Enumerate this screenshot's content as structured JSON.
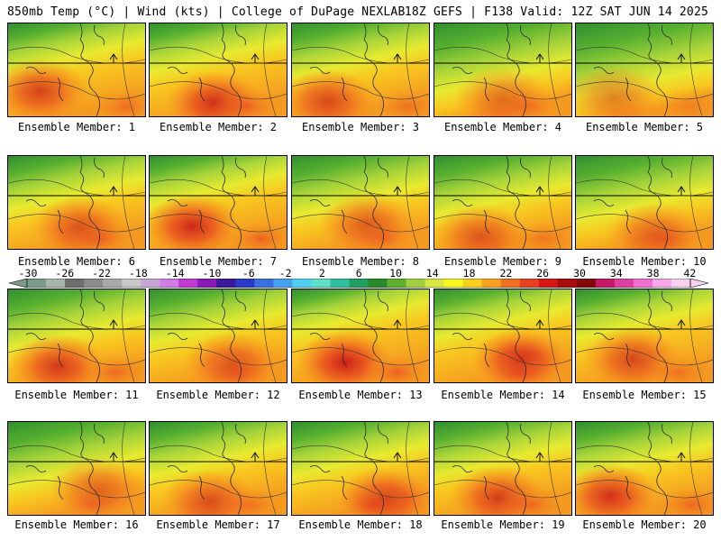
{
  "header": {
    "left": "850mb Temp (°C) | Wind (kts) | College of DuPage NEXLAB",
    "right": "18Z GEFS | F138 Valid: 12Z SAT JUN 14 2025"
  },
  "panels": [
    {
      "label": "Ensemble Member: 1",
      "heat": 0.75,
      "cool": 0.35
    },
    {
      "label": "Ensemble Member: 2",
      "heat": 0.85,
      "cool": 0.35
    },
    {
      "label": "Ensemble Member: 3",
      "heat": 0.7,
      "cool": 0.4
    },
    {
      "label": "Ensemble Member: 4",
      "heat": 0.5,
      "cool": 0.55
    },
    {
      "label": "Ensemble Member: 5",
      "heat": 0.45,
      "cool": 0.6
    },
    {
      "label": "Ensemble Member: 6",
      "heat": 0.65,
      "cool": 0.4
    },
    {
      "label": "Ensemble Member: 7",
      "heat": 0.9,
      "cool": 0.35
    },
    {
      "label": "Ensemble Member: 8",
      "heat": 0.6,
      "cool": 0.45
    },
    {
      "label": "Ensemble Member: 9",
      "heat": 0.6,
      "cool": 0.45
    },
    {
      "label": "Ensemble Member: 10",
      "heat": 0.55,
      "cool": 0.5
    },
    {
      "label": "Ensemble Member: 11",
      "heat": 0.8,
      "cool": 0.45
    },
    {
      "label": "Ensemble Member: 12",
      "heat": 0.65,
      "cool": 0.4
    },
    {
      "label": "Ensemble Member: 13",
      "heat": 0.95,
      "cool": 0.3
    },
    {
      "label": "Ensemble Member: 14",
      "heat": 0.95,
      "cool": 0.35
    },
    {
      "label": "Ensemble Member: 15",
      "heat": 0.7,
      "cool": 0.35
    },
    {
      "label": "Ensemble Member: 16",
      "heat": 0.55,
      "cool": 0.5
    },
    {
      "label": "Ensemble Member: 17",
      "heat": 0.65,
      "cool": 0.4
    },
    {
      "label": "Ensemble Member: 18",
      "heat": 0.8,
      "cool": 0.4
    },
    {
      "label": "Ensemble Member: 19",
      "heat": 0.75,
      "cool": 0.4
    },
    {
      "label": "Ensemble Member: 20",
      "heat": 0.85,
      "cool": 0.4
    }
  ],
  "colorbar": {
    "tick_labels": [
      "-30",
      "-26",
      "-22",
      "-18",
      "-14",
      "-10",
      "-6",
      "-2",
      "2",
      "6",
      "10",
      "14",
      "18",
      "22",
      "26",
      "30",
      "34",
      "38",
      "42"
    ],
    "colors": [
      "#7a9a8a",
      "#a8b5ad",
      "#6e6e6e",
      "#8c8c8c",
      "#a9a9a9",
      "#c8c8c8",
      "#c6a6d8",
      "#d07de8",
      "#c03ad0",
      "#8a1ab8",
      "#3a1a9a",
      "#2a3ac8",
      "#3a70e0",
      "#4aa0f0",
      "#50d0f0",
      "#60e0c8",
      "#30c0a0",
      "#20a060",
      "#2a8a2a",
      "#60b030",
      "#a0d040",
      "#d8e840",
      "#f8f820",
      "#f8d020",
      "#f8a020",
      "#f07020",
      "#e84020",
      "#d81818",
      "#a80c0c",
      "#800808",
      "#c81868",
      "#e040a0",
      "#f070d0",
      "#f8a8e8",
      "#f8d0f0"
    ]
  }
}
